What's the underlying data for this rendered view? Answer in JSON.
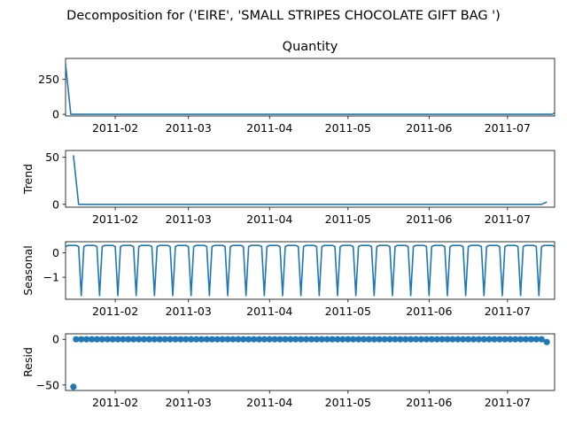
{
  "chart_data": {
    "type": "line",
    "title": "Decomposition for ('EIRE', 'SMALL STRIPES CHOCOLATE GIFT BAG ')",
    "x_start": "2011-01-13",
    "x_end": "2011-07-19",
    "x_ticks": [
      "2011-02",
      "2011-03",
      "2011-04",
      "2011-05",
      "2011-06",
      "2011-07"
    ],
    "line_color": "#1f77b4",
    "panels": [
      {
        "name": "observed",
        "title": "Quantity",
        "ylabel": "",
        "kind": "line",
        "ylim": [
          -12,
          400
        ],
        "yticks": [
          0,
          250
        ],
        "series": [
          {
            "x": "2011-01-13",
            "y": 360
          },
          {
            "x": "2011-01-15",
            "y": 0
          },
          {
            "x": "2011-07-18",
            "y": 0
          },
          {
            "x": "2011-07-19",
            "y": 10
          }
        ]
      },
      {
        "name": "trend",
        "title": "",
        "ylabel": "Trend",
        "kind": "line",
        "ylim": [
          -3,
          57
        ],
        "yticks": [
          0,
          50
        ],
        "series": [
          {
            "x": "2011-01-16",
            "y": 52
          },
          {
            "x": "2011-01-18",
            "y": 0
          },
          {
            "x": "2011-07-14",
            "y": 0
          },
          {
            "x": "2011-07-16",
            "y": 2.5
          }
        ]
      },
      {
        "name": "seasonal",
        "title": "",
        "ylabel": "Seasonal",
        "kind": "seasonal",
        "ylim": [
          -1.9,
          0.45
        ],
        "yticks": [
          0,
          -1
        ],
        "period_days": 7,
        "pattern": [
          0.25,
          0.3,
          0.3,
          0.3,
          0.3,
          0.25,
          -1.75
        ],
        "start_offset": 0
      },
      {
        "name": "resid",
        "title": "",
        "ylabel": "Resid",
        "kind": "scatter",
        "ylim": [
          -56,
          6
        ],
        "yticks": [
          0,
          -50
        ],
        "first_point": {
          "x": "2011-01-16",
          "y": -52
        },
        "last_point": {
          "x": "2011-07-16",
          "y": -3
        },
        "bulk_value": 0,
        "bulk_start": "2011-01-17",
        "bulk_end": "2011-07-15",
        "bulk_step_days": 2
      }
    ]
  }
}
